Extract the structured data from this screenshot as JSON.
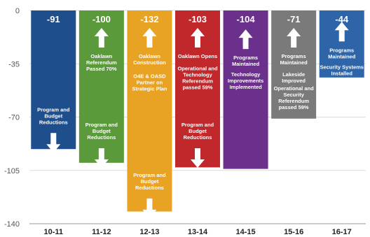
{
  "chart_data": {
    "type": "bar",
    "categories": [
      "10-11",
      "11-12",
      "12-13",
      "13-14",
      "14-15",
      "15-16",
      "16-17"
    ],
    "values": [
      -91,
      -100,
      -132,
      -103,
      -104,
      -71,
      -44
    ],
    "value_labels": [
      "-91",
      "-100",
      "-132",
      "-103",
      "-104",
      "-71",
      "-44"
    ],
    "y_ticks": [
      0,
      -35,
      -70,
      -105,
      -140
    ],
    "y_tick_labels": [
      "0",
      "-35",
      "-70",
      "-105",
      "-140"
    ],
    "ylim": [
      -140,
      0
    ],
    "grid": true,
    "title": "",
    "xlabel": "",
    "ylabel": "",
    "colors": [
      "#1f4e8c",
      "#5a9a3b",
      "#e8a325",
      "#c0282c",
      "#6b2f8c",
      "#7a7a7a",
      "#2e64a8"
    ],
    "annotations": [
      {
        "bar": 0,
        "segments": [
          {
            "lines": [
              "Program and",
              "Budget",
              "Reductions"
            ],
            "at": -63,
            "arrow_after": "down"
          }
        ]
      },
      {
        "bar": 1,
        "segments": [
          {
            "arrow_before": "up",
            "lines": [
              "Oaklawn",
              "Referendum",
              "Passed 70%"
            ],
            "at": -28
          },
          {
            "lines": [
              "Program and",
              "Budget",
              "Reductions"
            ],
            "at": -73,
            "arrow_after": "down"
          }
        ]
      },
      {
        "bar": 2,
        "segments": [
          {
            "arrow_before": "up",
            "lines": [
              "Oaklawn",
              "Construction"
            ],
            "at": -28
          },
          {
            "lines": [
              "O4E & OASD",
              "Partner on",
              "Strategic Plan"
            ],
            "at": -41
          },
          {
            "lines": [
              "Program and",
              "Budget",
              "Reductions"
            ],
            "at": -106,
            "arrow_after": "down"
          }
        ]
      },
      {
        "bar": 3,
        "segments": [
          {
            "arrow_before": "up",
            "lines": [
              "Oaklawn Opens"
            ],
            "at": -28
          },
          {
            "lines": [
              "Operational and",
              "Technology",
              "Referendum",
              "passed 59%"
            ],
            "at": -36
          },
          {
            "lines": [
              "Program and",
              "Budget",
              "Reductions"
            ],
            "at": -73,
            "arrow_after": "down"
          }
        ]
      },
      {
        "bar": 4,
        "segments": [
          {
            "arrow_before": "up",
            "lines": [
              "Programs",
              "Maintained"
            ],
            "at": -29
          },
          {
            "lines": [
              "Technology",
              "Improvements",
              "Implemented"
            ],
            "at": -40
          }
        ]
      },
      {
        "bar": 5,
        "segments": [
          {
            "arrow_before": "up",
            "lines": [
              "Programs",
              "Maintained"
            ],
            "at": -28
          },
          {
            "lines": [
              "Lakeside",
              "Improved"
            ],
            "at": -40
          },
          {
            "lines": [
              "Operational and",
              "Security",
              "Referendum",
              "passed 59%"
            ],
            "at": -49
          }
        ]
      },
      {
        "bar": 6,
        "segments": [
          {
            "arrow_before": "up",
            "lines": [
              "Programs",
              "Maintained"
            ],
            "at": -24
          },
          {
            "lines": [
              "Security Systems",
              "Installed"
            ],
            "at": -35
          }
        ]
      }
    ]
  }
}
